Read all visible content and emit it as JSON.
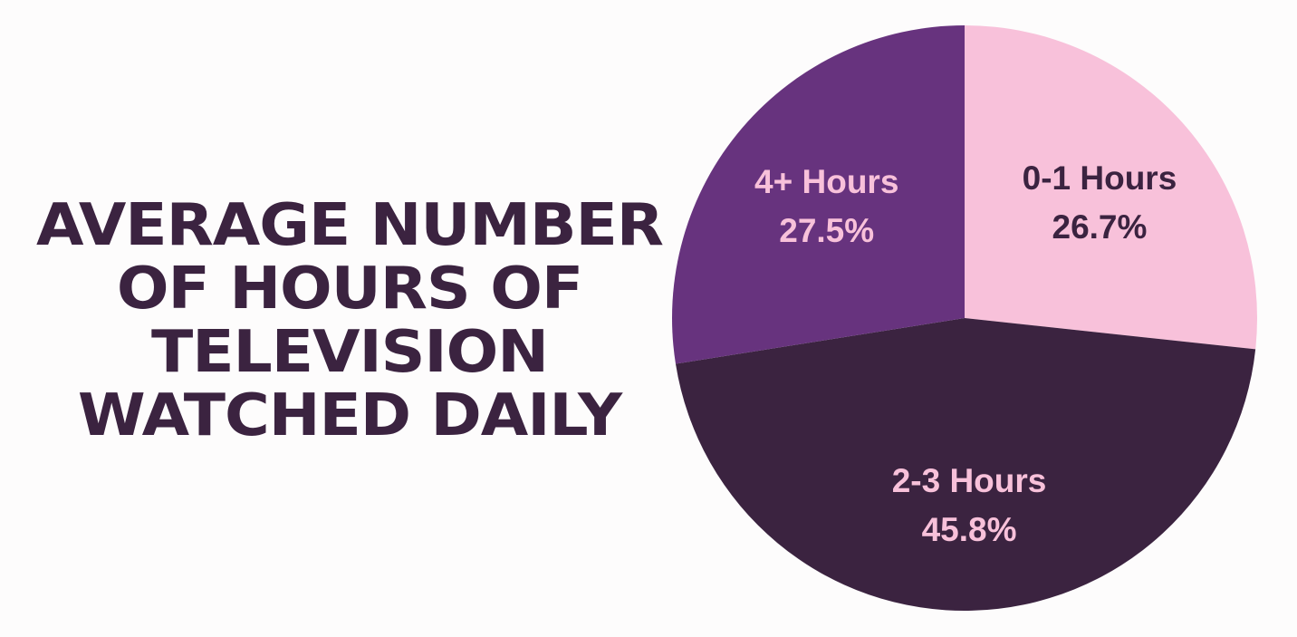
{
  "title_lines": [
    "AVERAGE NUMBER",
    "OF HOURS OF",
    "TELEVISION",
    "WATCHED DAILY"
  ],
  "chart_data": {
    "type": "pie",
    "title": "AVERAGE NUMBER OF HOURS OF TELEVISION WATCHED DAILY",
    "slices": [
      {
        "label": "0-1 Hours",
        "value": 26.7,
        "value_label": "26.7%",
        "color": "#f8c1da",
        "text_color": "#3b2340"
      },
      {
        "label": "2-3 Hours",
        "value": 45.8,
        "value_label": "45.8%",
        "color": "#3b2340",
        "text_color": "#f8c1da"
      },
      {
        "label": "4+ Hours",
        "value": 27.5,
        "value_label": "27.5%",
        "color": "#67337e",
        "text_color": "#f8c1da"
      }
    ],
    "start_angle": "12 o'clock",
    "direction": "clockwise",
    "legend": "none",
    "labels_inside": true
  }
}
